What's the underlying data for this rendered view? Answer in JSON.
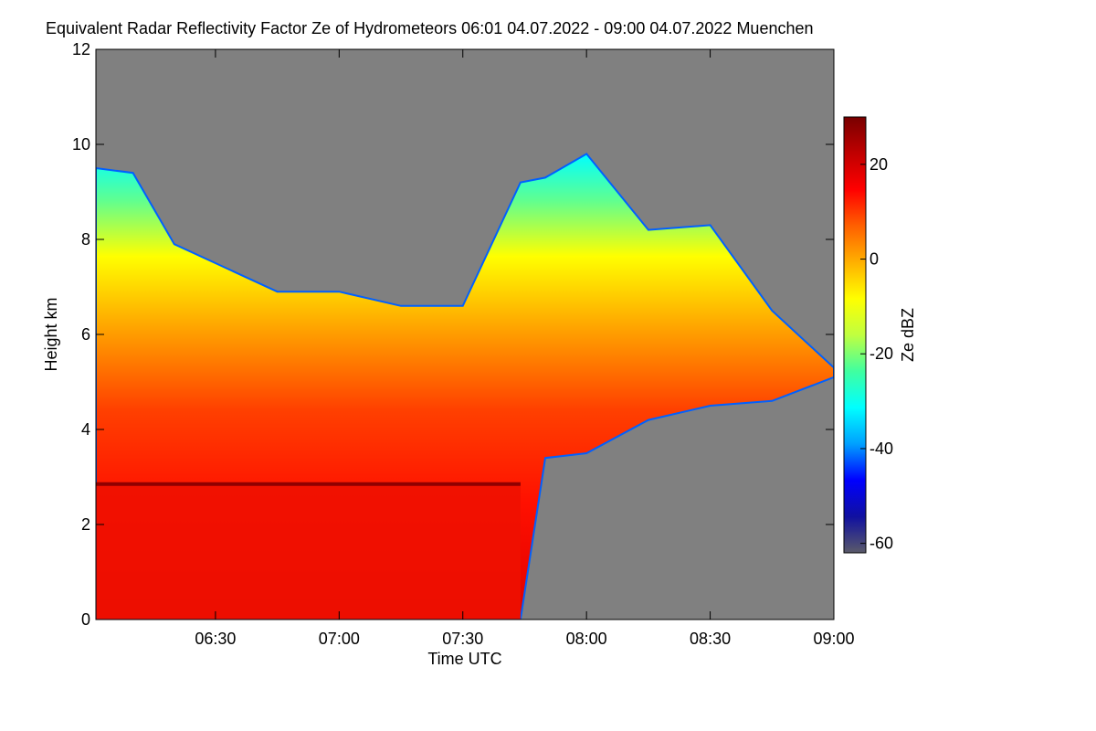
{
  "chart_data": {
    "type": "heatmap",
    "title": "Equivalent Radar Reflectivity Factor Ze of Hydrometeors   06:01 04.07.2022 - 09:00 04.07.2022 Muenchen",
    "xlabel": "Time UTC",
    "ylabel": "Height km",
    "x_range": [
      "06:01",
      "09:00"
    ],
    "x_ticks": [
      "06:30",
      "07:00",
      "07:30",
      "08:00",
      "08:30",
      "09:00"
    ],
    "ylim": [
      0,
      12
    ],
    "y_ticks": [
      "0",
      "2",
      "4",
      "6",
      "8",
      "10",
      "12"
    ],
    "background_color": "#808080",
    "colorbar": {
      "label": "Ze dBZ",
      "range": [
        -62,
        30
      ],
      "ticks": [
        "20",
        "0",
        "-20",
        "-40",
        "-60"
      ],
      "colors": [
        "#5a5a6a",
        "#1010a0",
        "#0000ff",
        "#00a0ff",
        "#00ffff",
        "#40ffa0",
        "#c0ff40",
        "#ffff00",
        "#ffb000",
        "#ff6000",
        "#ff0000",
        "#c00000",
        "#780000"
      ]
    },
    "echo_top_profile": [
      {
        "time": "06:01",
        "top_km": 9.5,
        "melting_layer_km": 2.85,
        "rain_bottom": true
      },
      {
        "time": "06:10",
        "top_km": 9.4,
        "melting_layer_km": 2.85,
        "rain_bottom": true
      },
      {
        "time": "06:20",
        "top_km": 7.9,
        "melting_layer_km": 2.85,
        "rain_bottom": true
      },
      {
        "time": "06:30",
        "top_km": 7.5,
        "melting_layer_km": 2.85,
        "rain_bottom": true
      },
      {
        "time": "06:45",
        "top_km": 6.9,
        "melting_layer_km": 2.85,
        "rain_bottom": true
      },
      {
        "time": "07:00",
        "top_km": 6.9,
        "melting_layer_km": 2.8,
        "rain_bottom": true
      },
      {
        "time": "07:15",
        "top_km": 6.6,
        "melting_layer_km": 2.8,
        "rain_bottom": true
      },
      {
        "time": "07:30",
        "top_km": 6.6,
        "melting_layer_km": 2.8,
        "rain_bottom": true
      },
      {
        "time": "07:44",
        "top_km": 9.2,
        "melting_layer_km": 2.8,
        "rain_bottom": true
      },
      {
        "time": "07:50",
        "top_km": 9.3,
        "base_km": 3.4
      },
      {
        "time": "08:00",
        "top_km": 9.8,
        "base_km": 3.5
      },
      {
        "time": "08:15",
        "top_km": 8.2,
        "base_km": 4.2
      },
      {
        "time": "08:30",
        "top_km": 8.3,
        "base_km": 4.5
      },
      {
        "time": "08:45",
        "top_km": 6.5,
        "base_km": 4.6
      },
      {
        "time": "09:00",
        "top_km": 5.3,
        "base_km": 5.1
      }
    ]
  }
}
